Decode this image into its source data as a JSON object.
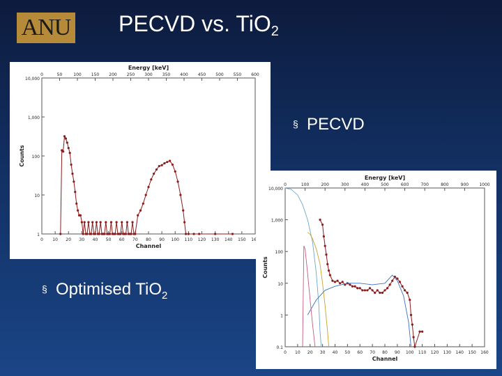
{
  "logo": {
    "text": "ANU"
  },
  "title": {
    "text": "PECVD vs. TiO",
    "subscript": "2"
  },
  "bullets": [
    {
      "marker": "§",
      "text": "PECVD",
      "subscript": ""
    },
    {
      "marker": "§",
      "text": "Optimised TiO",
      "subscript": "2"
    }
  ],
  "chart_data": [
    {
      "type": "scatter",
      "title": "",
      "top_axis_label": "Energy [keV]",
      "top_ticks": [
        "0",
        "50",
        "100",
        "150",
        "200",
        "250",
        "300",
        "350",
        "400",
        "450",
        "500",
        "550",
        "600"
      ],
      "xlabel": "Channel",
      "ylabel": "Counts",
      "x_ticks": [
        "0",
        "10",
        "20",
        "30",
        "40",
        "50",
        "60",
        "70",
        "80",
        "90",
        "100",
        "110",
        "120",
        "130",
        "140",
        "150",
        "160"
      ],
      "y_ticks": [
        "1",
        "10",
        "100",
        "1,000",
        "10,000"
      ],
      "y_scale": "log",
      "xlim": [
        0,
        160
      ],
      "ylim": [
        1,
        10000
      ],
      "series": [
        {
          "color": "#8c1b1b",
          "points": [
            [
              14,
              1
            ],
            [
              15,
              140
            ],
            [
              16,
              130
            ],
            [
              17,
              320
            ],
            [
              18,
              280
            ],
            [
              19,
              220
            ],
            [
              20,
              160
            ],
            [
              21,
              120
            ],
            [
              22,
              60
            ],
            [
              23,
              35
            ],
            [
              24,
              22
            ],
            [
              25,
              12
            ],
            [
              26,
              6
            ],
            [
              27,
              4
            ],
            [
              28,
              3
            ],
            [
              29,
              3
            ],
            [
              30,
              2
            ],
            [
              31,
              1
            ],
            [
              32,
              2
            ],
            [
              33,
              1
            ],
            [
              34,
              1
            ],
            [
              35,
              2
            ],
            [
              36,
              1
            ],
            [
              37,
              1
            ],
            [
              38,
              2
            ],
            [
              39,
              1
            ],
            [
              40,
              1
            ],
            [
              41,
              2
            ],
            [
              42,
              1
            ],
            [
              43,
              1
            ],
            [
              44,
              2
            ],
            [
              45,
              1
            ],
            [
              46,
              1
            ],
            [
              47,
              1
            ],
            [
              48,
              2
            ],
            [
              49,
              1
            ],
            [
              50,
              1
            ],
            [
              51,
              1
            ],
            [
              52,
              2
            ],
            [
              53,
              1
            ],
            [
              54,
              1
            ],
            [
              55,
              1
            ],
            [
              56,
              2
            ],
            [
              57,
              1
            ],
            [
              58,
              1
            ],
            [
              59,
              1
            ],
            [
              60,
              2
            ],
            [
              61,
              1
            ],
            [
              62,
              1
            ],
            [
              63,
              1
            ],
            [
              64,
              2
            ],
            [
              65,
              1
            ],
            [
              66,
              1
            ],
            [
              67,
              1
            ],
            [
              68,
              2
            ],
            [
              69,
              1
            ],
            [
              70,
              1
            ],
            [
              72,
              3
            ],
            [
              74,
              4
            ],
            [
              76,
              6
            ],
            [
              78,
              10
            ],
            [
              80,
              16
            ],
            [
              82,
              25
            ],
            [
              84,
              35
            ],
            [
              86,
              45
            ],
            [
              88,
              55
            ],
            [
              90,
              58
            ],
            [
              92,
              65
            ],
            [
              94,
              70
            ],
            [
              96,
              75
            ],
            [
              98,
              60
            ],
            [
              100,
              40
            ],
            [
              102,
              22
            ],
            [
              104,
              10
            ],
            [
              106,
              4
            ],
            [
              107,
              2
            ],
            [
              108,
              1
            ],
            [
              110,
              1
            ],
            [
              114,
              1
            ],
            [
              118,
              1
            ],
            [
              130,
              1
            ],
            [
              143,
              1
            ]
          ]
        }
      ]
    },
    {
      "type": "scatter",
      "title": "",
      "top_axis_label": "Energy [keV]",
      "top_ticks": [
        "0",
        "100",
        "200",
        "300",
        "400",
        "500",
        "600",
        "700",
        "800",
        "900",
        "1000"
      ],
      "xlabel": "Channel",
      "ylabel": "Counts",
      "x_ticks": [
        "0",
        "10",
        "20",
        "30",
        "40",
        "50",
        "60",
        "70",
        "80",
        "90",
        "100",
        "110",
        "120",
        "130",
        "140",
        "150",
        "160"
      ],
      "y_ticks": [
        "0.1",
        "1",
        "10",
        "100",
        "1,000",
        "10,000"
      ],
      "y_scale": "log",
      "xlim": [
        0,
        160
      ],
      "ylim": [
        0.1,
        10000
      ],
      "series": [
        {
          "color": "#8c1b1b",
          "points": [
            [
              28,
              1000
            ],
            [
              30,
              700
            ],
            [
              31,
              300
            ],
            [
              32,
              150
            ],
            [
              33,
              80
            ],
            [
              34,
              40
            ],
            [
              35,
              25
            ],
            [
              36,
              18
            ],
            [
              38,
              12
            ],
            [
              40,
              11
            ],
            [
              42,
              12
            ],
            [
              44,
              10
            ],
            [
              46,
              11
            ],
            [
              48,
              9
            ],
            [
              50,
              10
            ],
            [
              52,
              9
            ],
            [
              54,
              8
            ],
            [
              56,
              8
            ],
            [
              58,
              7
            ],
            [
              60,
              7
            ],
            [
              62,
              6
            ],
            [
              64,
              6
            ],
            [
              66,
              6
            ],
            [
              68,
              7
            ],
            [
              70,
              6
            ],
            [
              72,
              5
            ],
            [
              74,
              6
            ],
            [
              76,
              5
            ],
            [
              78,
              5
            ],
            [
              80,
              6
            ],
            [
              82,
              7
            ],
            [
              84,
              9
            ],
            [
              86,
              12
            ],
            [
              88,
              16
            ],
            [
              90,
              14
            ],
            [
              92,
              11
            ],
            [
              94,
              8
            ],
            [
              96,
              6
            ],
            [
              98,
              5
            ],
            [
              100,
              3
            ],
            [
              101,
              1
            ],
            [
              102,
              0.5
            ],
            [
              103,
              0.2
            ],
            [
              104,
              0.1
            ],
            [
              108,
              0.3
            ],
            [
              110,
              0.3
            ]
          ]
        },
        {
          "color": "#6aa8d0",
          "points": [
            [
              0,
              10000
            ],
            [
              5,
              9000
            ],
            [
              10,
              6000
            ],
            [
              14,
              3000
            ],
            [
              18,
              1000
            ],
            [
              22,
              200
            ],
            [
              25,
              20
            ],
            [
              27,
              2
            ],
            [
              28,
              0.3
            ],
            [
              29,
              0.1
            ]
          ]
        },
        {
          "color": "#c9a227",
          "points": [
            [
              18,
              400
            ],
            [
              20,
              350
            ],
            [
              22,
              250
            ],
            [
              25,
              120
            ],
            [
              28,
              40
            ],
            [
              30,
              10
            ],
            [
              32,
              2
            ],
            [
              34,
              0.3
            ],
            [
              35,
              0.1
            ]
          ]
        },
        {
          "color": "#3b6fc7",
          "points": [
            [
              18,
              1
            ],
            [
              25,
              3
            ],
            [
              32,
              6
            ],
            [
              40,
              8
            ],
            [
              50,
              10
            ],
            [
              60,
              10
            ],
            [
              70,
              9
            ],
            [
              80,
              10
            ],
            [
              86,
              18
            ],
            [
              90,
              12
            ],
            [
              95,
              4
            ],
            [
              99,
              0.6
            ],
            [
              101,
              0.1
            ]
          ]
        },
        {
          "color": "#c85a7a",
          "points": [
            [
              14,
              0.1
            ],
            [
              15,
              150
            ],
            [
              16,
              120
            ],
            [
              18,
              20
            ],
            [
              20,
              3
            ],
            [
              22,
              0.5
            ],
            [
              24,
              0.1
            ]
          ]
        }
      ]
    }
  ]
}
